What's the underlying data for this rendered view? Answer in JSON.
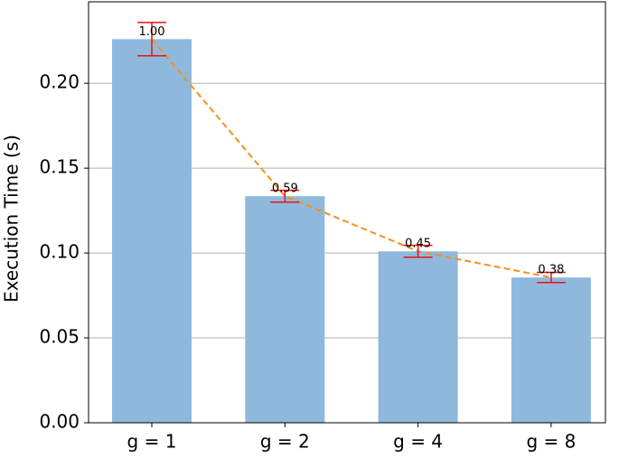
{
  "chart_data": {
    "type": "bar",
    "y_label": "Execution Time (s)",
    "categories": [
      "g = 1",
      "g = 2",
      "g = 4",
      "g = 8"
    ],
    "values": [
      0.226,
      0.1335,
      0.101,
      0.0856
    ],
    "errors": [
      0.0098,
      0.0035,
      0.0035,
      0.003
    ],
    "annotations": [
      "1.00",
      "0.59",
      "0.45",
      "0.38"
    ],
    "color": "#8fb9dc",
    "error_color": "#e8131b",
    "trend_color": "#f5901e",
    "ylim": [
      0,
      0.248
    ],
    "yticks": [
      {
        "value": 0,
        "label": "0.00"
      },
      {
        "value": 0.05,
        "label": "0.05"
      },
      {
        "value": 0.1,
        "label": "0.10"
      },
      {
        "value": 0.15,
        "label": "0.15"
      },
      {
        "value": 0.2,
        "label": "0.20"
      }
    ],
    "grid": true
  }
}
